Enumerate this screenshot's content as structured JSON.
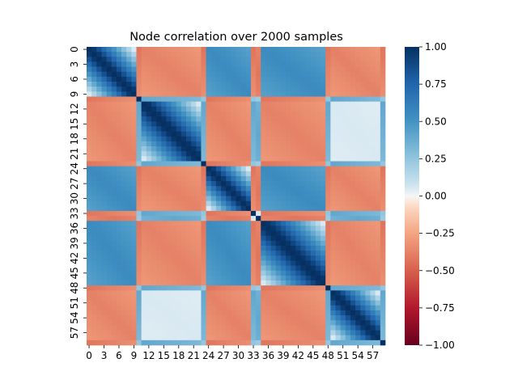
{
  "chart_data": {
    "type": "heatmap",
    "title": "Node correlation over 2000 samples",
    "xlabel": "",
    "ylabel": "",
    "n": 60,
    "x_tick_labels": [
      "0",
      "3",
      "6",
      "9",
      "12",
      "15",
      "18",
      "21",
      "24",
      "27",
      "30",
      "33",
      "36",
      "39",
      "42",
      "45",
      "48",
      "51",
      "54",
      "57"
    ],
    "y_tick_labels": [
      "0",
      "3",
      "6",
      "9",
      "12",
      "15",
      "18",
      "21",
      "24",
      "27",
      "30",
      "33",
      "36",
      "39",
      "42",
      "45",
      "48",
      "51",
      "54",
      "57"
    ],
    "colorbar_ticks": [
      "1.00",
      "0.75",
      "0.50",
      "0.25",
      "0.00",
      "−0.25",
      "−0.50",
      "−0.75",
      "−1.00"
    ],
    "colorbar_range": [
      -1,
      1
    ],
    "colormap": "RdBu",
    "grid": false,
    "legend": "colorbar-right",
    "groups": [
      {
        "start": 0,
        "end": 10,
        "type": "A"
      },
      {
        "start": 10,
        "end": 11,
        "type": "S"
      },
      {
        "start": 11,
        "end": 23,
        "type": "B"
      },
      {
        "start": 23,
        "end": 24,
        "type": "S"
      },
      {
        "start": 24,
        "end": 33,
        "type": "A"
      },
      {
        "start": 33,
        "end": 35,
        "type": "S"
      },
      {
        "start": 35,
        "end": 48,
        "type": "A"
      },
      {
        "start": 48,
        "end": 49,
        "type": "S"
      },
      {
        "start": 49,
        "end": 59,
        "type": "B"
      },
      {
        "start": 59,
        "end": 60,
        "type": "S"
      }
    ],
    "type_correlation": {
      "A-A": 0.55,
      "B-B": 0.05,
      "S-S": 0.25,
      "A-B": -0.38,
      "A-S": -0.42,
      "B-S": 0.4
    },
    "within_block_decay": 0.12,
    "diagonal": 1.0
  }
}
